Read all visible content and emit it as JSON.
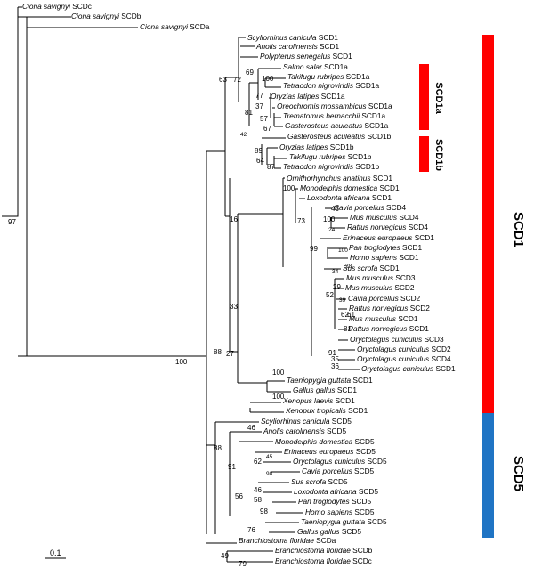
{
  "figure": {
    "scale_label": "0.1",
    "groups": [
      {
        "label": "SCD1",
        "color": "#ff0000"
      },
      {
        "label": "SCD5",
        "color": "#1f74c4"
      },
      {
        "label": "SCD1a",
        "color": "#ff0000"
      },
      {
        "label": "SCD1b",
        "color": "#ff0000"
      }
    ],
    "leaves": [
      {
        "species": "Ciona savignyi",
        "gene": "SCDc"
      },
      {
        "species": "Ciona savignyi",
        "gene": "SCDb"
      },
      {
        "species": "Ciona savignyi",
        "gene": "SCDa"
      },
      {
        "species": "Scyliorhinus canicula",
        "gene": "SCD1"
      },
      {
        "species": "Anolis carolinensis",
        "gene": "SCD1"
      },
      {
        "species": "Polypterus senegalus",
        "gene": "SCD1"
      },
      {
        "species": "Salmo salar",
        "gene": "SCD1a"
      },
      {
        "species": "Takifugu rubripes",
        "gene": "SCD1a"
      },
      {
        "species": "Tetraodon nigroviridis",
        "gene": "SCD1a"
      },
      {
        "species": "Oryzias latipes",
        "gene": "SCD1a"
      },
      {
        "species": "Oreochromis mossambicus",
        "gene": "SCD1a"
      },
      {
        "species": "Trematomus bernacchii",
        "gene": "SCD1a"
      },
      {
        "species": "Gasterosteus aculeatus",
        "gene": "SCD1a"
      },
      {
        "species": "Gasterosteus aculeatus",
        "gene": "SCD1b"
      },
      {
        "species": "Oryzias latipes",
        "gene": "SCD1b"
      },
      {
        "species": "Takifugu rubripes",
        "gene": "SCD1b"
      },
      {
        "species": "Tetraodon nigroviridis",
        "gene": "SCD1b"
      },
      {
        "species": "Ornithorhynchus anatinus",
        "gene": "SCD1"
      },
      {
        "species": "Monodelphis domestica",
        "gene": "SCD1"
      },
      {
        "species": "Loxodonta africana",
        "gene": "SCD1"
      },
      {
        "species": "Cavia porcellus",
        "gene": "SCD4"
      },
      {
        "species": "Mus musculus",
        "gene": "SCD4"
      },
      {
        "species": "Rattus norvegicus",
        "gene": "SCD4"
      },
      {
        "species": "Erinaceus europaeus",
        "gene": "SCD1"
      },
      {
        "species": "Pan troglodytes",
        "gene": "SCD1"
      },
      {
        "species": "Homo sapiens",
        "gene": "SCD1"
      },
      {
        "species": "Sus scrofa",
        "gene": "SCD1"
      },
      {
        "species": "Mus musculus",
        "gene": "SCD3"
      },
      {
        "species": "Mus musculus",
        "gene": "SCD2"
      },
      {
        "species": "Cavia porcellus",
        "gene": "SCD2"
      },
      {
        "species": "Rattus norvegicus",
        "gene": "SCD2"
      },
      {
        "species": "Mus musculus",
        "gene": "SCD1"
      },
      {
        "species": "Rattus norvegicus",
        "gene": "SCD1"
      },
      {
        "species": "Oryctolagus cuniculus",
        "gene": "SCD3"
      },
      {
        "species": "Oryctolagus cuniculus",
        "gene": "SCD2"
      },
      {
        "species": "Oryctolagus cuniculus",
        "gene": "SCD4"
      },
      {
        "species": "Oryctolagus cuniculus",
        "gene": "SCD1"
      },
      {
        "species": "Taeniopygia guttata",
        "gene": "SCD1"
      },
      {
        "species": "Gallus gallus",
        "gene": "SCD1"
      },
      {
        "species": "Xenopus laevis",
        "gene": "SCD1"
      },
      {
        "species": "Xenopux tropicalis",
        "gene": "SCD1"
      },
      {
        "species": "Scyliorhinus canicula",
        "gene": "SCD5"
      },
      {
        "species": "Anolis carolinensis",
        "gene": "SCD5"
      },
      {
        "species": "Monodelphis domestica",
        "gene": "SCD5"
      },
      {
        "species": "Erinaceus europaeus",
        "gene": "SCD5"
      },
      {
        "species": "Oryctolagus cuniculus",
        "gene": "SCD5"
      },
      {
        "species": "Cavia porcellus",
        "gene": "SCD5"
      },
      {
        "species": "Sus scrofa",
        "gene": "SCD5"
      },
      {
        "species": "Loxodonta africana",
        "gene": "SCD5"
      },
      {
        "species": "Pan troglodytes",
        "gene": "SCD5"
      },
      {
        "species": "Homo sapiens",
        "gene": "SCD5"
      },
      {
        "species": "Taeniopygia guttata",
        "gene": "SCD5"
      },
      {
        "species": "Gallus gallus",
        "gene": "SCD5"
      },
      {
        "species": "Branchiostoma floridae",
        "gene": "SCDa"
      },
      {
        "species": "Branchiostoma floridae",
        "gene": "SCDb"
      },
      {
        "species": "Branchiostoma floridae",
        "gene": "SCDc"
      }
    ],
    "bootstrap_values": [
      "97",
      "100",
      "88",
      "63",
      "16",
      "72",
      "81",
      "42",
      "69",
      "100",
      "77",
      "37",
      "57",
      "67",
      "89",
      "64",
      "87",
      "100",
      "73",
      "99",
      "43",
      "100",
      "24",
      "100",
      "28",
      "34",
      "29",
      "39",
      "52",
      "62",
      "61",
      "81",
      "91",
      "35",
      "36",
      "33",
      "27",
      "100",
      "100",
      "88",
      "91",
      "46",
      "45",
      "98",
      "62",
      "46",
      "58",
      "98",
      "56",
      "76",
      "49",
      "79"
    ]
  }
}
